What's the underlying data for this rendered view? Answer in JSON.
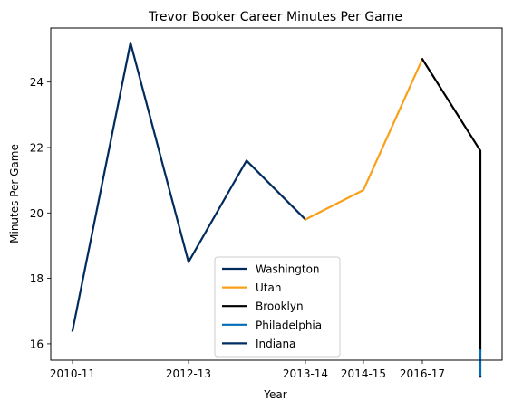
{
  "chart_data": {
    "type": "line",
    "title": "Trevor Booker Career Minutes Per Game",
    "xlabel": "Year",
    "ylabel": "Minutes Per Game",
    "x_ticks": [
      "2010-11",
      "2012-13",
      "2013-14",
      "2014-15",
      "2016-17"
    ],
    "y_ticks": [
      16,
      18,
      20,
      22,
      24
    ],
    "ylim": [
      15.5,
      25.65
    ],
    "grid": false,
    "legend_placement": "lower center",
    "series": [
      {
        "name": "Washington",
        "color": "#002B5C",
        "points": [
          {
            "x": 0,
            "y": 16.4
          },
          {
            "x": 1,
            "y": 25.2
          },
          {
            "x": 2,
            "y": 18.5
          },
          {
            "x": 3,
            "y": 21.6
          },
          {
            "x": 4,
            "y": 19.8
          }
        ]
      },
      {
        "name": "Utah",
        "color": "#F9A01B",
        "points": [
          {
            "x": 4,
            "y": 19.8
          },
          {
            "x": 5,
            "y": 20.7
          },
          {
            "x": 6,
            "y": 24.7
          }
        ]
      },
      {
        "name": "Brooklyn",
        "color": "#000000",
        "points": [
          {
            "x": 6,
            "y": 24.7
          },
          {
            "x": 7,
            "y": 21.9
          },
          {
            "x": 7,
            "y": 15.8
          }
        ]
      },
      {
        "name": "Philadelphia",
        "color": "#006BB6",
        "points": [
          {
            "x": 7,
            "y": 15.8
          },
          {
            "x": 7,
            "y": 15.0
          }
        ]
      },
      {
        "name": "Indiana",
        "color": "#002D62",
        "points": [
          {
            "x": 7,
            "y": 15.0
          },
          {
            "x": 7,
            "y": 15.0
          }
        ]
      }
    ]
  }
}
